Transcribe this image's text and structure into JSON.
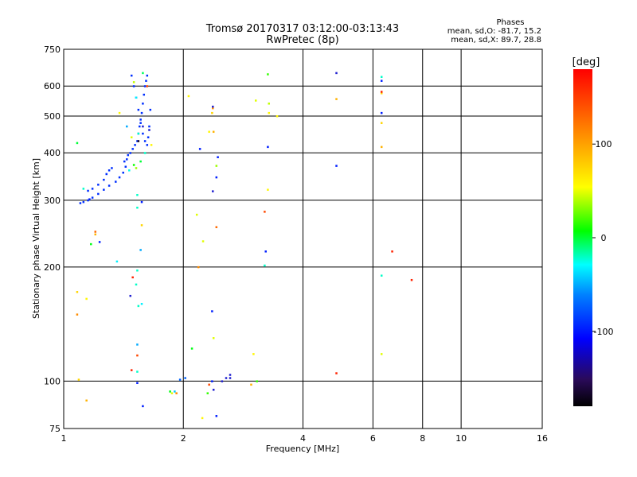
{
  "chart_data": {
    "type": "scatter",
    "title": "Tromsø 20170317 03:12:00-03:13:43",
    "subtitle": "RwPretec (8p)",
    "xlabel": "Frequency [MHz]",
    "ylabel": "Stationary phase Virtual Height [km]",
    "x_scale": "log",
    "y_scale": "log",
    "xlim": [
      1,
      16
    ],
    "ylim": [
      75,
      750
    ],
    "x_ticks": [
      1,
      2,
      4,
      6,
      8,
      10,
      16
    ],
    "x_tick_labels": [
      "1",
      "2",
      "4",
      "6",
      "8",
      "10",
      "16"
    ],
    "y_ticks": [
      75,
      100,
      200,
      300,
      400,
      500,
      600,
      750
    ],
    "y_tick_labels": [
      "75",
      "100",
      "200",
      "300",
      "400",
      "500",
      "600",
      "750"
    ],
    "x_grid": [
      2,
      4,
      6,
      8,
      10
    ],
    "y_grid": [
      100,
      200,
      300,
      400,
      500,
      600
    ],
    "stats": {
      "heading": "Phases",
      "line1": "mean, sd,O: -81.7, 15.2",
      "line2": "mean, sd,X:  89.7, 28.8"
    },
    "colorbar": {
      "label": "[deg]",
      "ticks": [
        100,
        0,
        -100
      ],
      "tick_labels": [
        "100",
        "0",
        "-100"
      ],
      "range": [
        -180,
        180
      ]
    },
    "trace_series": [
      {
        "x": [
          1.1,
          1.12,
          1.15,
          1.18,
          1.22,
          1.26,
          1.3,
          1.35,
          1.38,
          1.41,
          1.43,
          1.44
        ],
        "y": [
          295,
          297,
          300,
          305,
          312,
          320,
          328,
          336,
          345,
          355,
          368,
          385
        ],
        "phase": -95
      },
      {
        "x": [
          1.15,
          1.18,
          1.22,
          1.26,
          1.28,
          1.3,
          1.32
        ],
        "y": [
          318,
          322,
          330,
          340,
          352,
          360,
          365
        ],
        "phase": -95
      },
      {
        "x": [
          1.45,
          1.47,
          1.49,
          1.51,
          1.53,
          1.54,
          1.55,
          1.56,
          1.57,
          1.58,
          1.59,
          1.6,
          1.61,
          1.62
        ],
        "y": [
          395,
          400,
          410,
          420,
          430,
          450,
          470,
          490,
          510,
          540,
          570,
          600,
          620,
          640
        ],
        "phase": -95
      },
      {
        "x": [
          1.48,
          1.5,
          1.52,
          1.54,
          1.56,
          1.58,
          1.6,
          1.62,
          1.63,
          1.64,
          1.65
        ],
        "y": [
          640,
          600,
          560,
          520,
          480,
          450,
          430,
          420,
          440,
          470,
          520
        ],
        "phase": -95
      }
    ],
    "points": [
      {
        "x": 1.5,
        "y": 615,
        "phase": 90
      },
      {
        "x": 1.58,
        "y": 650,
        "phase": 10
      },
      {
        "x": 1.62,
        "y": 600,
        "phase": 160
      },
      {
        "x": 1.52,
        "y": 560,
        "phase": -40
      },
      {
        "x": 1.54,
        "y": 450,
        "phase": -20
      },
      {
        "x": 1.48,
        "y": 440,
        "phase": 100
      },
      {
        "x": 1.64,
        "y": 460,
        "phase": -150
      },
      {
        "x": 1.66,
        "y": 420,
        "phase": 110
      },
      {
        "x": 1.44,
        "y": 470,
        "phase": -60
      },
      {
        "x": 1.56,
        "y": 380,
        "phase": 20
      },
      {
        "x": 1.42,
        "y": 380,
        "phase": -95
      },
      {
        "x": 1.6,
        "y": 400,
        "phase": -20
      },
      {
        "x": 1.38,
        "y": 510,
        "phase": 110
      },
      {
        "x": 1.52,
        "y": 365,
        "phase": 80
      },
      {
        "x": 1.5,
        "y": 372,
        "phase": 40
      },
      {
        "x": 1.46,
        "y": 360,
        "phase": -30
      },
      {
        "x": 1.54,
        "y": 430,
        "phase": -170
      },
      {
        "x": 1.58,
        "y": 470,
        "phase": -140
      },
      {
        "x": 1.08,
        "y": 425,
        "phase": 20
      },
      {
        "x": 1.12,
        "y": 322,
        "phase": -20
      },
      {
        "x": 1.16,
        "y": 302,
        "phase": -100
      },
      {
        "x": 1.53,
        "y": 310,
        "phase": -20
      },
      {
        "x": 1.53,
        "y": 287,
        "phase": -20
      },
      {
        "x": 1.57,
        "y": 297,
        "phase": -100
      },
      {
        "x": 1.57,
        "y": 258,
        "phase": 120
      },
      {
        "x": 1.2,
        "y": 248,
        "phase": 150
      },
      {
        "x": 1.2,
        "y": 244,
        "phase": 130
      },
      {
        "x": 1.17,
        "y": 230,
        "phase": 30
      },
      {
        "x": 1.23,
        "y": 233,
        "phase": -100
      },
      {
        "x": 1.36,
        "y": 207,
        "phase": -40
      },
      {
        "x": 1.56,
        "y": 222,
        "phase": -60
      },
      {
        "x": 1.53,
        "y": 196,
        "phase": -20
      },
      {
        "x": 1.49,
        "y": 188,
        "phase": 170
      },
      {
        "x": 1.52,
        "y": 180,
        "phase": -20
      },
      {
        "x": 1.54,
        "y": 158,
        "phase": -20
      },
      {
        "x": 1.57,
        "y": 160,
        "phase": -40
      },
      {
        "x": 1.47,
        "y": 168,
        "phase": -150
      },
      {
        "x": 1.08,
        "y": 172,
        "phase": 120
      },
      {
        "x": 1.14,
        "y": 165,
        "phase": 110
      },
      {
        "x": 1.08,
        "y": 150,
        "phase": 140
      },
      {
        "x": 1.53,
        "y": 125,
        "phase": -60
      },
      {
        "x": 1.53,
        "y": 117,
        "phase": 160
      },
      {
        "x": 1.48,
        "y": 107,
        "phase": 170
      },
      {
        "x": 1.53,
        "y": 106,
        "phase": -20
      },
      {
        "x": 1.53,
        "y": 99,
        "phase": -100
      },
      {
        "x": 1.09,
        "y": 101,
        "phase": 120
      },
      {
        "x": 1.14,
        "y": 89,
        "phase": 130
      },
      {
        "x": 1.58,
        "y": 86,
        "phase": -100
      },
      {
        "x": 1.85,
        "y": 94,
        "phase": 30
      },
      {
        "x": 1.87,
        "y": 93,
        "phase": 100
      },
      {
        "x": 1.9,
        "y": 94,
        "phase": -50
      },
      {
        "x": 1.92,
        "y": 93,
        "phase": 140
      },
      {
        "x": 1.96,
        "y": 101,
        "phase": -80
      },
      {
        "x": 2.02,
        "y": 102,
        "phase": -80
      },
      {
        "x": 2.1,
        "y": 122,
        "phase": 30
      },
      {
        "x": 2.23,
        "y": 80,
        "phase": 110
      },
      {
        "x": 2.3,
        "y": 93,
        "phase": 50
      },
      {
        "x": 2.32,
        "y": 98,
        "phase": 160
      },
      {
        "x": 2.36,
        "y": 100,
        "phase": -100
      },
      {
        "x": 2.38,
        "y": 95,
        "phase": -120
      },
      {
        "x": 2.42,
        "y": 81,
        "phase": -100
      },
      {
        "x": 2.5,
        "y": 100,
        "phase": -150
      },
      {
        "x": 2.56,
        "y": 102,
        "phase": -130
      },
      {
        "x": 2.62,
        "y": 104,
        "phase": -150
      },
      {
        "x": 2.62,
        "y": 102,
        "phase": -130
      },
      {
        "x": 2.38,
        "y": 130,
        "phase": 100
      },
      {
        "x": 2.36,
        "y": 153,
        "phase": -100
      },
      {
        "x": 2.18,
        "y": 200,
        "phase": 140
      },
      {
        "x": 2.24,
        "y": 234,
        "phase": 100
      },
      {
        "x": 2.42,
        "y": 255,
        "phase": 150
      },
      {
        "x": 2.16,
        "y": 275,
        "phase": 100
      },
      {
        "x": 2.37,
        "y": 317,
        "phase": -150
      },
      {
        "x": 2.42,
        "y": 345,
        "phase": -100
      },
      {
        "x": 2.42,
        "y": 370,
        "phase": 80
      },
      {
        "x": 2.44,
        "y": 390,
        "phase": -100
      },
      {
        "x": 2.2,
        "y": 410,
        "phase": -100
      },
      {
        "x": 2.32,
        "y": 455,
        "phase": 110
      },
      {
        "x": 2.38,
        "y": 455,
        "phase": 130
      },
      {
        "x": 2.36,
        "y": 510,
        "phase": 120
      },
      {
        "x": 2.37,
        "y": 525,
        "phase": 140
      },
      {
        "x": 2.37,
        "y": 530,
        "phase": -150
      },
      {
        "x": 2.06,
        "y": 565,
        "phase": 110
      },
      {
        "x": 3.0,
        "y": 118,
        "phase": 110
      },
      {
        "x": 3.06,
        "y": 100,
        "phase": 50
      },
      {
        "x": 2.96,
        "y": 98,
        "phase": 130
      },
      {
        "x": 3.2,
        "y": 202,
        "phase": -20
      },
      {
        "x": 3.22,
        "y": 220,
        "phase": -100
      },
      {
        "x": 3.2,
        "y": 280,
        "phase": 160
      },
      {
        "x": 3.26,
        "y": 320,
        "phase": 110
      },
      {
        "x": 3.26,
        "y": 415,
        "phase": -100
      },
      {
        "x": 3.28,
        "y": 510,
        "phase": 110
      },
      {
        "x": 3.44,
        "y": 500,
        "phase": 110
      },
      {
        "x": 3.28,
        "y": 540,
        "phase": 90
      },
      {
        "x": 3.04,
        "y": 550,
        "phase": 100
      },
      {
        "x": 3.26,
        "y": 645,
        "phase": 50
      },
      {
        "x": 4.85,
        "y": 105,
        "phase": 170
      },
      {
        "x": 4.85,
        "y": 370,
        "phase": -100
      },
      {
        "x": 4.85,
        "y": 555,
        "phase": 130
      },
      {
        "x": 4.85,
        "y": 650,
        "phase": -150
      },
      {
        "x": 6.3,
        "y": 118,
        "phase": 100
      },
      {
        "x": 6.3,
        "y": 190,
        "phase": -20
      },
      {
        "x": 6.3,
        "y": 415,
        "phase": 130
      },
      {
        "x": 6.3,
        "y": 480,
        "phase": 120
      },
      {
        "x": 6.3,
        "y": 510,
        "phase": -100
      },
      {
        "x": 6.3,
        "y": 575,
        "phase": 120
      },
      {
        "x": 6.3,
        "y": 580,
        "phase": 170
      },
      {
        "x": 6.3,
        "y": 620,
        "phase": -100
      },
      {
        "x": 6.3,
        "y": 635,
        "phase": -20
      },
      {
        "x": 6.7,
        "y": 220,
        "phase": 170
      },
      {
        "x": 7.5,
        "y": 185,
        "phase": 170
      }
    ]
  }
}
